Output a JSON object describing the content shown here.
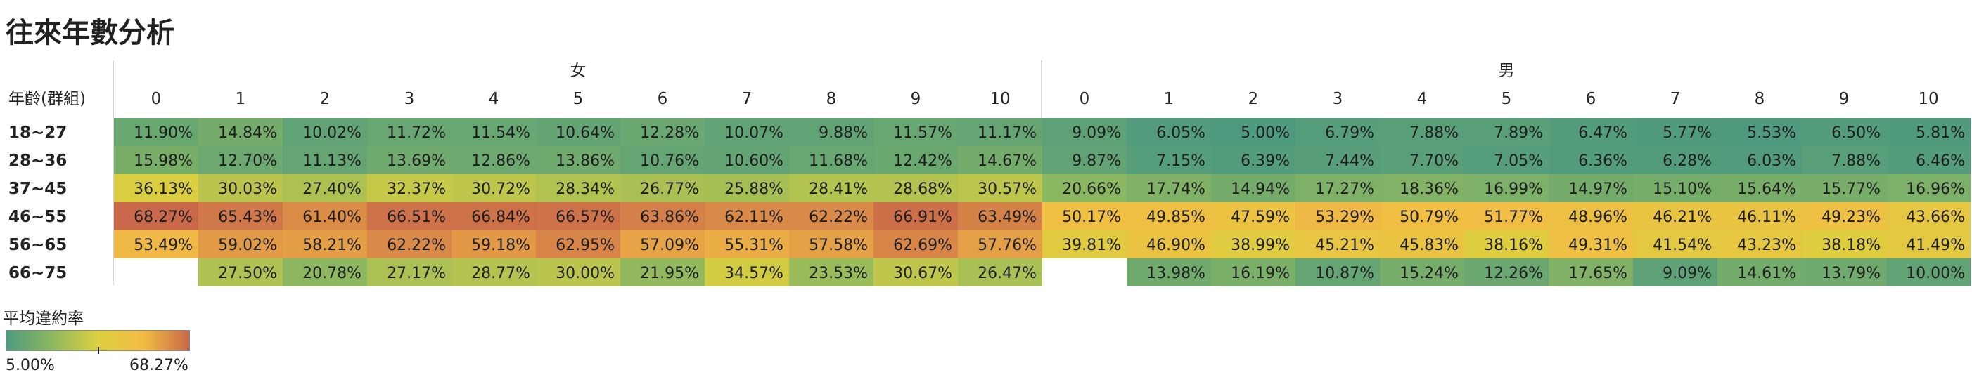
{
  "title": "往來年數分析",
  "chart_data": {
    "type": "heatmap",
    "row_header": "年齡(群組)",
    "rows": [
      "18~27",
      "28~36",
      "37~45",
      "46~55",
      "56~65",
      "66~75"
    ],
    "columns": [
      "0",
      "1",
      "2",
      "3",
      "4",
      "5",
      "6",
      "7",
      "8",
      "9",
      "10"
    ],
    "groups": [
      {
        "name": "女",
        "values": [
          [
            "11.90%",
            "14.84%",
            "10.02%",
            "11.72%",
            "11.54%",
            "10.64%",
            "12.28%",
            "10.07%",
            "9.88%",
            "11.57%",
            "11.17%"
          ],
          [
            "15.98%",
            "12.70%",
            "11.13%",
            "13.69%",
            "12.86%",
            "13.86%",
            "10.76%",
            "10.60%",
            "11.68%",
            "12.42%",
            "14.67%"
          ],
          [
            "36.13%",
            "30.03%",
            "27.40%",
            "32.37%",
            "30.72%",
            "28.34%",
            "26.77%",
            "25.88%",
            "28.41%",
            "28.68%",
            "30.57%"
          ],
          [
            "68.27%",
            "65.43%",
            "61.40%",
            "66.51%",
            "66.84%",
            "66.57%",
            "63.86%",
            "62.11%",
            "62.22%",
            "66.91%",
            "63.49%"
          ],
          [
            "53.49%",
            "59.02%",
            "58.21%",
            "62.22%",
            "59.18%",
            "62.95%",
            "57.09%",
            "55.31%",
            "57.58%",
            "62.69%",
            "57.76%"
          ],
          [
            "",
            "27.50%",
            "20.78%",
            "27.17%",
            "28.77%",
            "30.00%",
            "21.95%",
            "34.57%",
            "23.53%",
            "30.67%",
            "26.47%"
          ]
        ]
      },
      {
        "name": "男",
        "values": [
          [
            "9.09%",
            "6.05%",
            "5.00%",
            "6.79%",
            "7.88%",
            "7.89%",
            "6.47%",
            "5.77%",
            "5.53%",
            "6.50%",
            "5.81%"
          ],
          [
            "9.87%",
            "7.15%",
            "6.39%",
            "7.44%",
            "7.70%",
            "7.05%",
            "6.36%",
            "6.28%",
            "6.03%",
            "7.88%",
            "6.46%"
          ],
          [
            "20.66%",
            "17.74%",
            "14.94%",
            "17.27%",
            "18.36%",
            "16.99%",
            "14.97%",
            "15.10%",
            "15.64%",
            "15.77%",
            "16.96%"
          ],
          [
            "50.17%",
            "49.85%",
            "47.59%",
            "53.29%",
            "50.79%",
            "51.77%",
            "48.96%",
            "46.21%",
            "46.11%",
            "49.23%",
            "43.66%"
          ],
          [
            "39.81%",
            "46.90%",
            "38.99%",
            "45.21%",
            "45.83%",
            "38.16%",
            "49.31%",
            "41.54%",
            "43.23%",
            "38.18%",
            "41.49%"
          ],
          [
            "",
            "13.98%",
            "16.19%",
            "10.87%",
            "15.24%",
            "12.26%",
            "17.65%",
            "9.09%",
            "14.61%",
            "13.79%",
            "10.00%"
          ]
        ]
      }
    ],
    "color_scale": {
      "title": "平均違約率",
      "min_label": "5.00%",
      "max_label": "68.27%",
      "min": 5.0,
      "max": 68.27,
      "colors": [
        "#4e9a7f",
        "#8cb760",
        "#dccf3f",
        "#f2bc44",
        "#c9694a"
      ]
    }
  }
}
